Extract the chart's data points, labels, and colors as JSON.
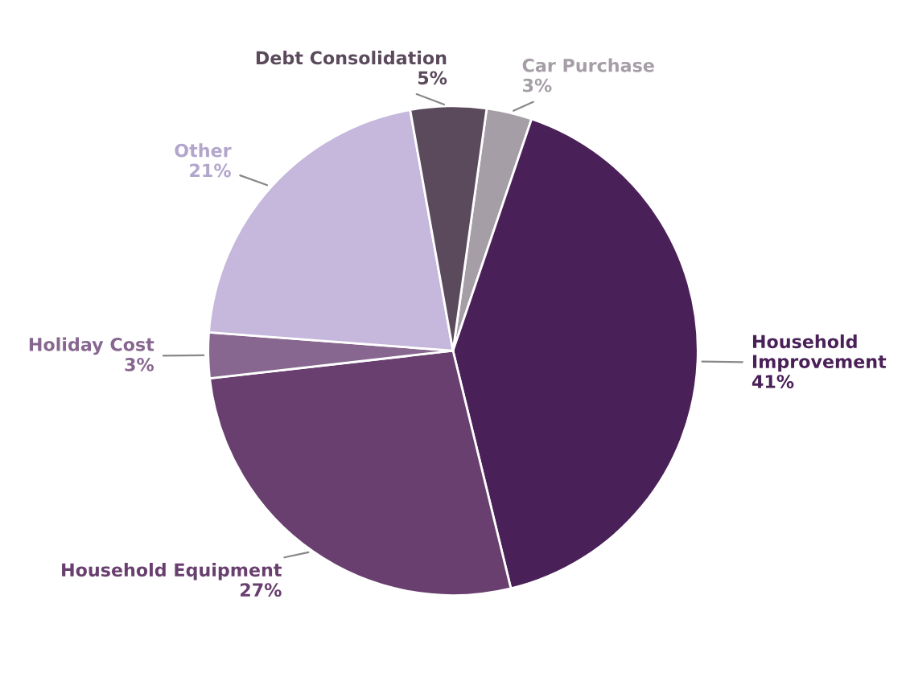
{
  "chart_data": {
    "type": "pie",
    "categories": [
      "Car Purchase",
      "Household Improvement",
      "Household Equipment",
      "Holiday Cost",
      "Other",
      "Debt Consolidation"
    ],
    "values": [
      3,
      41,
      27,
      3,
      21,
      5
    ],
    "colors": [
      "#a59ea6",
      "#4a2058",
      "#683f6e",
      "#876790",
      "#c5b8dc",
      "#5a4a5c"
    ],
    "value_labels": [
      "3%",
      "41%",
      "27%",
      "3%",
      "21%",
      "5%"
    ]
  }
}
